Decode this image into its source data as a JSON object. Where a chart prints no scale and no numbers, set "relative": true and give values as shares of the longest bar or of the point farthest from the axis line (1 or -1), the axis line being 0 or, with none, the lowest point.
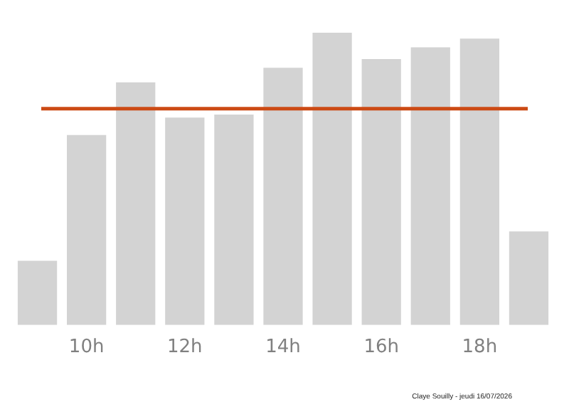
{
  "chart_data": {
    "type": "bar",
    "relative": true,
    "categories": [
      null,
      "10h",
      null,
      "12h",
      null,
      "14h",
      null,
      "16h",
      null,
      "18h",
      null
    ],
    "values": [
      0.22,
      0.65,
      0.83,
      0.71,
      0.72,
      0.88,
      1,
      0.91,
      0.95,
      0.98,
      0.32
    ],
    "color": "#d3d3d3",
    "ref_lines": [
      {
        "axis": "y",
        "value": 0.74,
        "color": "#cc4a14"
      }
    ],
    "annotations": [
      "Claye Souilly - jeudi 16/07/2026"
    ],
    "grid": false,
    "legend": false
  }
}
